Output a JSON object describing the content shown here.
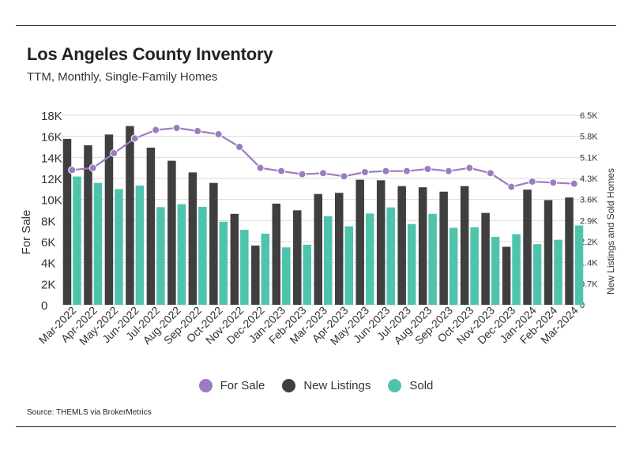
{
  "header": {
    "title": "Los Angeles County Inventory",
    "subtitle": "TTM, Monthly, Single-Family Homes"
  },
  "footer": {
    "source": "Source:  THEMLS via BrokerMetrics"
  },
  "colors": {
    "for_sale": "#9b7cc0",
    "new_listings": "#3f3f3f",
    "sold": "#4fc4ad",
    "grid": "#dcdcdc",
    "text": "#333333"
  },
  "chart_data": {
    "type": "bar",
    "title": "Los Angeles County Inventory",
    "subtitle": "TTM, Monthly, Single-Family Homes",
    "categories": [
      "Mar-2022",
      "Apr-2022",
      "May-2022",
      "Jun-2022",
      "Jul-2022",
      "Aug-2022",
      "Sep-2022",
      "Oct-2022",
      "Nov-2022",
      "Dec-2022",
      "Jan-2023",
      "Feb-2023",
      "Mar-2023",
      "Apr-2023",
      "May-2023",
      "Jun-2023",
      "Jul-2023",
      "Aug-2023",
      "Sep-2023",
      "Oct-2023",
      "Nov-2023",
      "Dec-2023",
      "Jan-2024",
      "Feb-2024",
      "Mar-2024"
    ],
    "ylabel_left": "For Sale",
    "ylabel_right": "New Listings and Sold Homes",
    "ylim_left": [
      0,
      18000
    ],
    "ylim_right": [
      0,
      6500
    ],
    "yticks_left": [
      "0",
      "2K",
      "4K",
      "6K",
      "8K",
      "10K",
      "12K",
      "14K",
      "16K",
      "18K"
    ],
    "yticks_right": [
      "0",
      "0.7K",
      "1.4K",
      "2.2K",
      "2.9K",
      "3.6K",
      "4.3K",
      "5.1K",
      "5.8K",
      "6.5K"
    ],
    "grid": true,
    "legend_position": "bottom",
    "series": [
      {
        "name": "For Sale",
        "type": "line",
        "axis": "left",
        "values": [
          12800,
          13000,
          14400,
          15800,
          16600,
          16800,
          16500,
          16200,
          15000,
          13000,
          12700,
          12400,
          12500,
          12200,
          12600,
          12700,
          12700,
          12900,
          12700,
          13000,
          12500,
          11200,
          11700,
          11600,
          11500
        ]
      },
      {
        "name": "New Listings",
        "type": "bar",
        "axis": "right",
        "values": [
          5690,
          5470,
          5840,
          6130,
          5390,
          4940,
          4540,
          4180,
          3120,
          2030,
          3470,
          3240,
          3800,
          3840,
          4290,
          4270,
          4070,
          4030,
          3880,
          4070,
          3150,
          1990,
          3950,
          3590,
          3680
        ]
      },
      {
        "name": "Sold",
        "type": "bar",
        "axis": "right",
        "values": [
          4400,
          4180,
          3970,
          4090,
          3350,
          3450,
          3360,
          2850,
          2570,
          2440,
          1970,
          2060,
          3040,
          2690,
          3130,
          3340,
          2770,
          3120,
          2640,
          2660,
          2330,
          2420,
          2080,
          2230,
          2720
        ]
      }
    ]
  }
}
